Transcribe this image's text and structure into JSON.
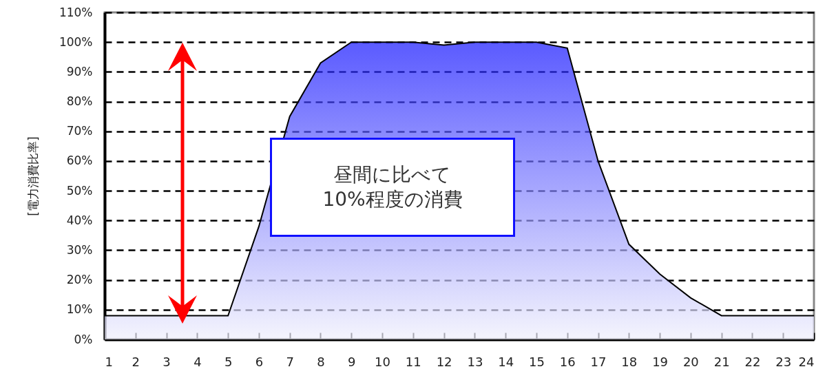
{
  "chart_data": {
    "type": "area",
    "ylabel": "[電力消費比率]",
    "annotations": [
      "昼間に比べて\n10%程度の消費"
    ],
    "x": [
      1,
      2,
      3,
      4,
      5,
      6,
      7,
      8,
      9,
      10,
      11,
      12,
      13,
      14,
      15,
      16,
      17,
      18,
      19,
      20,
      21,
      22,
      23,
      24
    ],
    "series": [
      {
        "color": "#1414ff",
        "values": [
          8,
          8,
          8,
          8,
          8,
          38,
          75,
          93,
          100,
          100,
          100,
          99,
          100,
          100,
          100,
          98,
          60,
          32,
          22,
          14,
          8,
          8,
          8,
          8
        ]
      }
    ],
    "xlim": [
      1,
      24
    ],
    "xticks": [
      1,
      2,
      3,
      4,
      5,
      6,
      7,
      8,
      9,
      10,
      11,
      12,
      13,
      14,
      15,
      16,
      17,
      18,
      19,
      20,
      21,
      22,
      23,
      24
    ],
    "ylim": [
      0,
      110
    ],
    "yticks": [
      {
        "value": 0,
        "label": "0%"
      },
      {
        "value": 10,
        "label": "10%"
      },
      {
        "value": 20,
        "label": "20%"
      },
      {
        "value": 30,
        "label": "30%"
      },
      {
        "value": 40,
        "label": "40%"
      },
      {
        "value": 50,
        "label": "50%"
      },
      {
        "value": 60,
        "label": "60%"
      },
      {
        "value": 70,
        "label": "70%"
      },
      {
        "value": 80,
        "label": "80%"
      },
      {
        "value": 90,
        "label": "90%"
      },
      {
        "value": 100,
        "label": "100%"
      },
      {
        "value": 110,
        "label": "110%"
      }
    ],
    "grid": "y",
    "line_style": "solid"
  }
}
